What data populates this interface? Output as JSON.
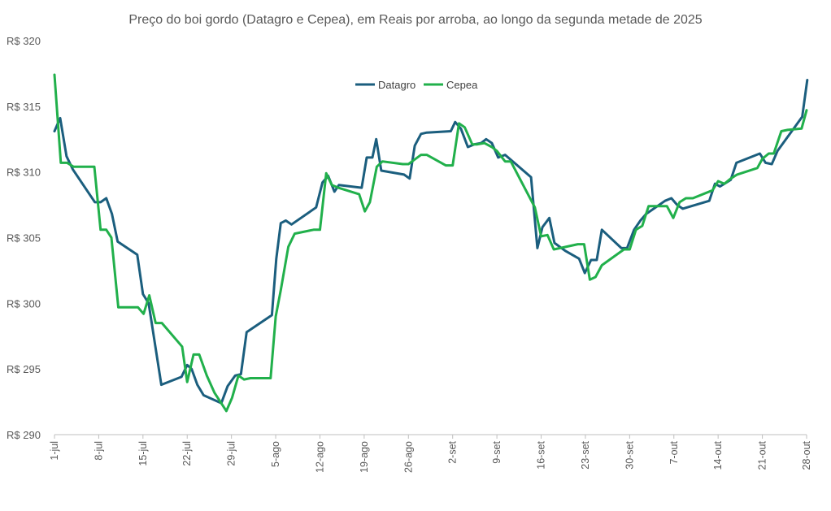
{
  "chart_data": {
    "type": "line",
    "title": "Preço do boi gordo (Datagro e Cepea), em Reais por arroba, ao longo da segunda metade de 2025",
    "xlabel": "",
    "ylabel": "",
    "ylim": [
      290,
      320
    ],
    "x_range_days": [
      0,
      119
    ],
    "yticks": [
      {
        "value": 290,
        "label": "R$ 290"
      },
      {
        "value": 295,
        "label": "R$ 295"
      },
      {
        "value": 300,
        "label": "R$ 300"
      },
      {
        "value": 305,
        "label": "R$ 305"
      },
      {
        "value": 310,
        "label": "R$ 310"
      },
      {
        "value": 315,
        "label": "R$ 315"
      },
      {
        "value": 320,
        "label": "R$ 320"
      }
    ],
    "xticks": [
      {
        "day": 0,
        "label": "1-jul"
      },
      {
        "day": 7,
        "label": "8-jul"
      },
      {
        "day": 14,
        "label": "15-jul"
      },
      {
        "day": 21,
        "label": "22-jul"
      },
      {
        "day": 28,
        "label": "29-jul"
      },
      {
        "day": 35,
        "label": "5-ago"
      },
      {
        "day": 42,
        "label": "12-ago"
      },
      {
        "day": 49,
        "label": "19-ago"
      },
      {
        "day": 56,
        "label": "26-ago"
      },
      {
        "day": 63,
        "label": "2-set"
      },
      {
        "day": 70,
        "label": "9-set"
      },
      {
        "day": 77,
        "label": "16-set"
      },
      {
        "day": 84,
        "label": "23-set"
      },
      {
        "day": 91,
        "label": "30-set"
      },
      {
        "day": 98,
        "label": "7-out"
      },
      {
        "day": 105,
        "label": "14-out"
      },
      {
        "day": 112,
        "label": "21-out"
      },
      {
        "day": 119,
        "label": "28-out"
      }
    ],
    "legend_position": "top-center",
    "series": [
      {
        "name": "Datagro",
        "color": "#1b5e7e",
        "points": [
          [
            0,
            313.1
          ],
          [
            0.9,
            314.1
          ],
          [
            1.9,
            311.2
          ],
          [
            2.9,
            310.2
          ],
          [
            6.4,
            307.7
          ],
          [
            7.3,
            307.7
          ],
          [
            8.2,
            308
          ],
          [
            9.1,
            306.8
          ],
          [
            10,
            304.7
          ],
          [
            13.1,
            303.7
          ],
          [
            14,
            300.7
          ],
          [
            14.9,
            300
          ],
          [
            16.9,
            293.8
          ],
          [
            20.1,
            294.4
          ],
          [
            21,
            295.3
          ],
          [
            21.7,
            295
          ],
          [
            22.6,
            293.8
          ],
          [
            23.6,
            293
          ],
          [
            26.4,
            292.4
          ],
          [
            27.4,
            293.7
          ],
          [
            28.6,
            294.5
          ],
          [
            29.5,
            294.6
          ],
          [
            30.4,
            297.8
          ],
          [
            34.4,
            299.1
          ],
          [
            35.1,
            303.4
          ],
          [
            35.8,
            306.1
          ],
          [
            36.6,
            306.3
          ],
          [
            37.5,
            306
          ],
          [
            41.4,
            307.3
          ],
          [
            42.4,
            309.2
          ],
          [
            43.3,
            309.7
          ],
          [
            44.3,
            308.5
          ],
          [
            45,
            309
          ],
          [
            48.6,
            308.8
          ],
          [
            49.4,
            311.1
          ],
          [
            50.3,
            311.1
          ],
          [
            50.9,
            312.5
          ],
          [
            51.7,
            310.1
          ],
          [
            55.3,
            309.8
          ],
          [
            56.2,
            309.5
          ],
          [
            57,
            312
          ],
          [
            58,
            312.9
          ],
          [
            58.9,
            313
          ],
          [
            62.7,
            313.1
          ],
          [
            63.4,
            313.8
          ],
          [
            64.3,
            313.3
          ],
          [
            65.4,
            311.9
          ],
          [
            66.4,
            312.1
          ],
          [
            67.5,
            312.2
          ],
          [
            68.3,
            312.5
          ],
          [
            69.2,
            312.2
          ],
          [
            70.2,
            311.1
          ],
          [
            71.3,
            311.3
          ],
          [
            75.4,
            309.6
          ],
          [
            76.4,
            304.2
          ],
          [
            77.2,
            305.8
          ],
          [
            78.3,
            306.5
          ],
          [
            79.1,
            304.6
          ],
          [
            80.8,
            304
          ],
          [
            83,
            303.4
          ],
          [
            83.9,
            302.3
          ],
          [
            84.9,
            303.3
          ],
          [
            85.8,
            303.3
          ],
          [
            86.6,
            305.6
          ],
          [
            89.7,
            304.2
          ],
          [
            90.6,
            304.2
          ],
          [
            91.7,
            305.6
          ],
          [
            92.7,
            306.3
          ],
          [
            93.6,
            306.8
          ],
          [
            96.6,
            307.8
          ],
          [
            97.6,
            308
          ],
          [
            98.5,
            307.5
          ],
          [
            99.4,
            307.2
          ],
          [
            103.6,
            307.8
          ],
          [
            104.5,
            309.1
          ],
          [
            105.3,
            308.9
          ],
          [
            107,
            309.4
          ],
          [
            107.9,
            310.7
          ],
          [
            111.6,
            311.4
          ],
          [
            112.5,
            310.7
          ],
          [
            113.5,
            310.6
          ],
          [
            114.4,
            311.6
          ],
          [
            118.3,
            314.2
          ],
          [
            119.1,
            317
          ]
        ]
      },
      {
        "name": "Cepea",
        "color": "#21b04b",
        "points": [
          [
            0,
            317.4
          ],
          [
            1,
            310.7
          ],
          [
            2,
            310.7
          ],
          [
            3,
            310.4
          ],
          [
            6.3,
            310.4
          ],
          [
            7.3,
            305.6
          ],
          [
            8.2,
            305.6
          ],
          [
            9,
            305
          ],
          [
            10.1,
            299.7
          ],
          [
            13.2,
            299.7
          ],
          [
            14.1,
            299.2
          ],
          [
            15,
            300.6
          ],
          [
            16,
            298.5
          ],
          [
            17,
            298.5
          ],
          [
            20.2,
            296.7
          ],
          [
            21,
            294
          ],
          [
            22,
            296.1
          ],
          [
            22.9,
            296.1
          ],
          [
            24.1,
            294.5
          ],
          [
            25.3,
            293.2
          ],
          [
            27.2,
            291.8
          ],
          [
            28.1,
            292.8
          ],
          [
            29.1,
            294.5
          ],
          [
            30,
            294.2
          ],
          [
            31,
            294.3
          ],
          [
            34.2,
            294.3
          ],
          [
            35,
            299
          ],
          [
            35.8,
            301
          ],
          [
            37,
            304.3
          ],
          [
            38,
            305.3
          ],
          [
            41,
            305.6
          ],
          [
            42,
            305.6
          ],
          [
            43,
            309.9
          ],
          [
            43.9,
            309
          ],
          [
            44.9,
            308.8
          ],
          [
            48.2,
            308.3
          ],
          [
            49.1,
            307
          ],
          [
            49.9,
            307.7
          ],
          [
            51,
            310.4
          ],
          [
            51.9,
            310.8
          ],
          [
            55.1,
            310.6
          ],
          [
            56,
            310.6
          ],
          [
            58,
            311.3
          ],
          [
            58.9,
            311.3
          ],
          [
            61.9,
            310.5
          ],
          [
            63,
            310.5
          ],
          [
            64,
            313.7
          ],
          [
            64.9,
            313.4
          ],
          [
            66.1,
            312.1
          ],
          [
            66.9,
            312.1
          ],
          [
            68,
            312.2
          ],
          [
            69.2,
            311.9
          ],
          [
            70,
            311.6
          ],
          [
            71.3,
            310.8
          ],
          [
            72.2,
            310.8
          ],
          [
            76,
            307.3
          ],
          [
            77,
            305.1
          ],
          [
            78,
            305.2
          ],
          [
            79,
            304.1
          ],
          [
            80,
            304.2
          ],
          [
            82.8,
            304.5
          ],
          [
            83.8,
            304.5
          ],
          [
            84.7,
            301.8
          ],
          [
            85.6,
            302
          ],
          [
            86.6,
            302.9
          ],
          [
            90.1,
            304.1
          ],
          [
            91,
            304.1
          ],
          [
            92,
            305.6
          ],
          [
            93,
            305.9
          ],
          [
            94,
            307.4
          ],
          [
            96.9,
            307.4
          ],
          [
            97.9,
            306.5
          ],
          [
            98.9,
            307.7
          ],
          [
            99.9,
            308
          ],
          [
            101,
            308
          ],
          [
            104.1,
            308.6
          ],
          [
            105,
            309.3
          ],
          [
            106,
            309.1
          ],
          [
            107,
            309.5
          ],
          [
            108,
            309.8
          ],
          [
            111.2,
            310.3
          ],
          [
            112,
            311
          ],
          [
            113,
            311.4
          ],
          [
            113.8,
            311.4
          ],
          [
            115,
            313.1
          ],
          [
            116,
            313.2
          ],
          [
            118.2,
            313.3
          ],
          [
            119,
            314.7
          ]
        ]
      }
    ]
  }
}
